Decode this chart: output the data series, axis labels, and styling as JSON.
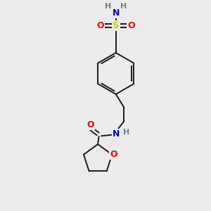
{
  "bg_color": "#ebebeb",
  "atom_colors": {
    "C": "#000000",
    "H": "#708090",
    "N": "#0000cd",
    "O": "#ff0000",
    "S": "#cccc00"
  },
  "bond_color": "#1a1a1a",
  "bond_width": 1.4
}
